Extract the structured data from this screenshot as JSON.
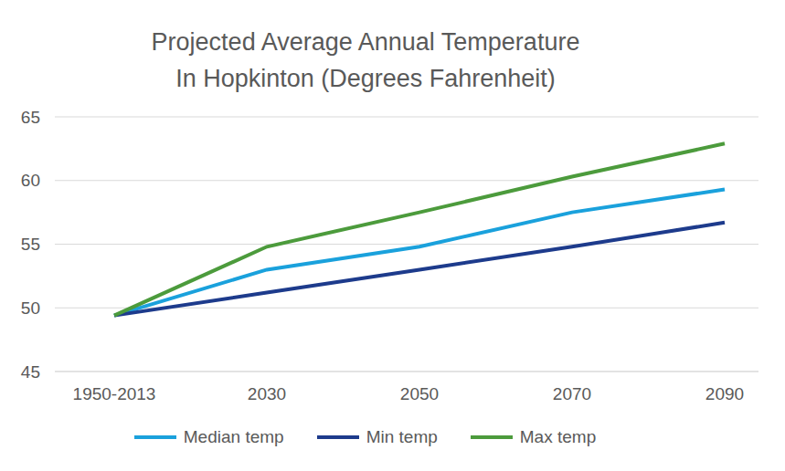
{
  "chart_data": {
    "type": "line",
    "title": "Projected Average Annual Temperature\nIn Hopkinton (Degrees Fahrenheit)",
    "categories": [
      "1950-2013",
      "2030",
      "2050",
      "2070",
      "2090"
    ],
    "series": [
      {
        "name": "Median temp",
        "color": "#1aa1dc",
        "values": [
          49.4,
          53.0,
          54.8,
          57.5,
          59.3
        ]
      },
      {
        "name": "Min temp",
        "color": "#1d3b8c",
        "values": [
          49.4,
          51.2,
          53.0,
          54.8,
          56.7
        ]
      },
      {
        "name": "Max temp",
        "color": "#4c9b3c",
        "values": [
          49.4,
          54.8,
          57.5,
          60.3,
          62.9
        ]
      }
    ],
    "ylim": [
      45,
      65
    ],
    "yticks": [
      45,
      50,
      55,
      60,
      65
    ],
    "grid": true,
    "legend": "bottom"
  }
}
